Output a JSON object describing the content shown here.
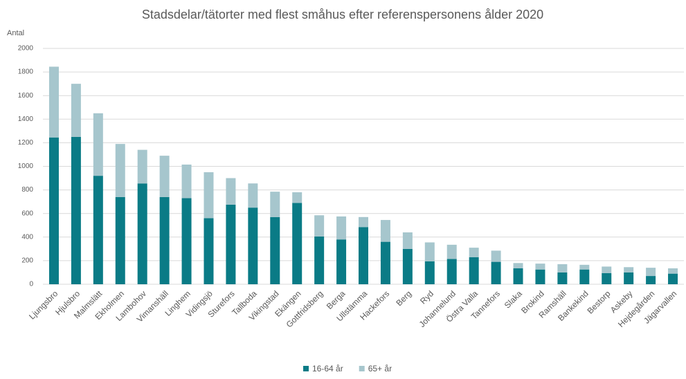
{
  "chart_data": {
    "type": "stacked_bar",
    "title": "Stadsdelar/tätorter med flest småhus efter referenspersonens ålder 2020",
    "y_label": "Antal",
    "categories": [
      "Ljungsbro",
      "Hjulsbro",
      "Malmslätt",
      "Ekholmen",
      "Lambohov",
      "Vimanshäll",
      "Linghem",
      "Vidingsjö",
      "Sturefors",
      "Tallboda",
      "Vikingstad",
      "Ekängen",
      "Gottfridsberg",
      "Berga",
      "Ullstämma",
      "Hackefors",
      "Berg",
      "Ryd",
      "Johannelund",
      "Östra Valla",
      "Tannefors",
      "Slaka",
      "Brokind",
      "Ramshäll",
      "Bankekind",
      "Bestorp",
      "Askeby",
      "Hejdegården",
      "Jägarvallen"
    ],
    "series": [
      {
        "name": "16-64 år",
        "color": "#0a7b86",
        "values": [
          1245,
          1250,
          920,
          740,
          855,
          740,
          730,
          560,
          675,
          650,
          570,
          690,
          405,
          380,
          485,
          360,
          300,
          195,
          215,
          230,
          190,
          135,
          125,
          100,
          125,
          95,
          100,
          70,
          90
        ]
      },
      {
        "name": "65+ år",
        "color": "#a6c6cd",
        "values": [
          600,
          450,
          530,
          450,
          285,
          350,
          285,
          390,
          225,
          205,
          215,
          90,
          180,
          195,
          85,
          185,
          140,
          160,
          120,
          80,
          95,
          45,
          50,
          70,
          40,
          55,
          45,
          70,
          45
        ]
      }
    ],
    "ylim": [
      0,
      2000
    ],
    "yticks": [
      0,
      200,
      400,
      600,
      800,
      1000,
      1200,
      1400,
      1600,
      1800,
      2000
    ],
    "grid": true,
    "legend": "bottom"
  }
}
